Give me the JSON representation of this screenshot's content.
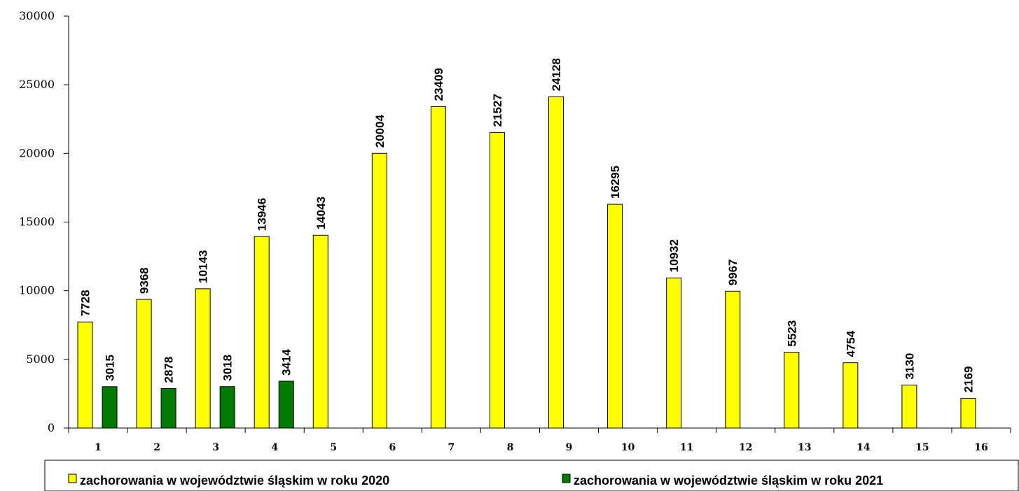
{
  "chart_data": {
    "type": "bar",
    "title": "",
    "xlabel": "",
    "ylabel": "",
    "ylim": [
      0,
      30000
    ],
    "yticks": [
      0,
      5000,
      10000,
      15000,
      20000,
      25000,
      30000
    ],
    "categories": [
      "1",
      "2",
      "3",
      "4",
      "5",
      "6",
      "7",
      "8",
      "9",
      "10",
      "11",
      "12",
      "13",
      "14",
      "15",
      "16"
    ],
    "series": [
      {
        "name": "zachorowania w województwie śląskim w roku 2020",
        "color": "#FFFF00",
        "values": [
          7728,
          9368,
          10143,
          13946,
          14043,
          20004,
          23409,
          21527,
          24128,
          16295,
          10932,
          9967,
          5523,
          4754,
          3130,
          2169
        ]
      },
      {
        "name": "zachorowania w województwie śląskim w roku 2021",
        "color": "#007A00",
        "values": [
          3015,
          2878,
          3018,
          3414,
          null,
          null,
          null,
          null,
          null,
          null,
          null,
          null,
          null,
          null,
          null,
          null
        ]
      }
    ],
    "grid": false,
    "legend_position": "bottom"
  }
}
